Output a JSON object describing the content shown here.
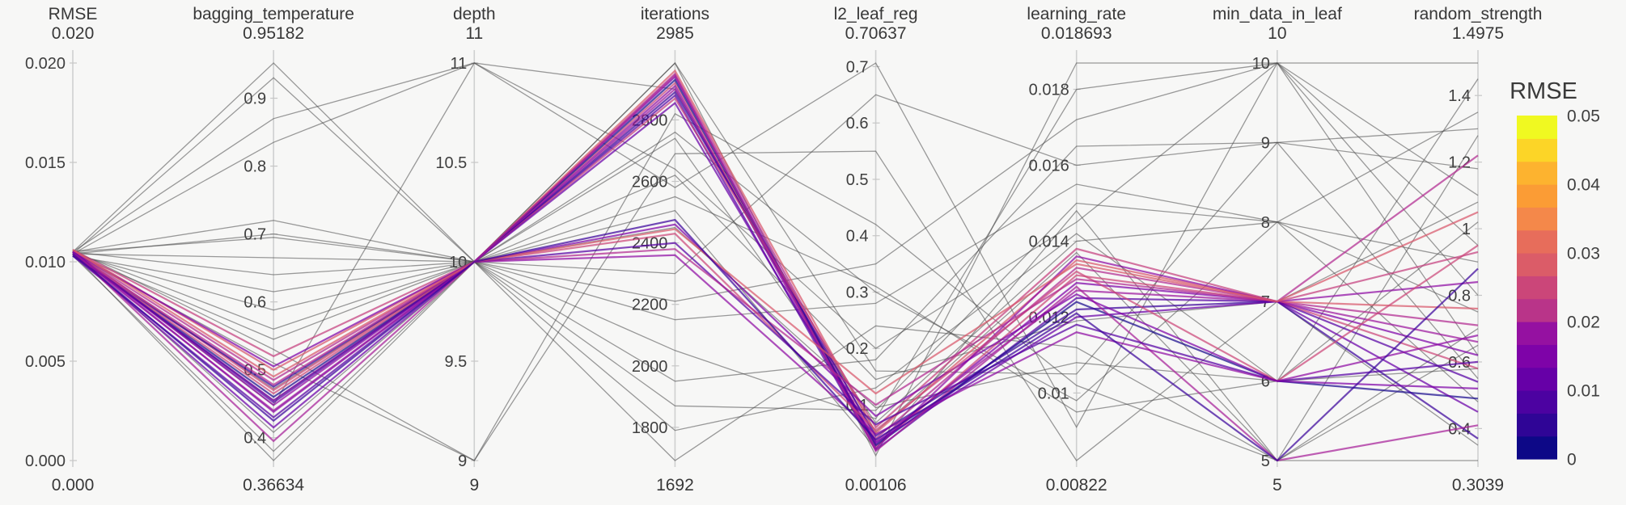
{
  "chart_data": {
    "type": "parallel_coordinates",
    "title": "",
    "axes": [
      {
        "name": "RMSE",
        "max_label": "0.020",
        "min_label": "0.000",
        "min": 0,
        "max": 0.02,
        "ticks": [
          [
            0.02,
            "0.020"
          ],
          [
            0.015,
            "0.015"
          ],
          [
            0.01,
            "0.010"
          ],
          [
            0.005,
            "0.005"
          ],
          [
            0,
            "0.000"
          ]
        ]
      },
      {
        "name": "bagging_temperature",
        "max_label": "0.95182",
        "min_label": "0.36634",
        "min": 0.36634,
        "max": 0.95182,
        "ticks": [
          [
            0.9,
            "0.9"
          ],
          [
            0.8,
            "0.8"
          ],
          [
            0.7,
            "0.7"
          ],
          [
            0.6,
            "0.6"
          ],
          [
            0.5,
            "0.5"
          ],
          [
            0.4,
            "0.4"
          ]
        ]
      },
      {
        "name": "depth",
        "max_label": "11",
        "min_label": "9",
        "min": 9,
        "max": 11,
        "ticks": [
          [
            11,
            "11"
          ],
          [
            10.5,
            "10.5"
          ],
          [
            10,
            "10"
          ],
          [
            9.5,
            "9.5"
          ],
          [
            9,
            "9"
          ]
        ]
      },
      {
        "name": "iterations",
        "max_label": "2985",
        "min_label": "1692",
        "min": 1692,
        "max": 2985,
        "ticks": [
          [
            2800,
            "2800"
          ],
          [
            2600,
            "2600"
          ],
          [
            2400,
            "2400"
          ],
          [
            2200,
            "2200"
          ],
          [
            2000,
            "2000"
          ],
          [
            1800,
            "1800"
          ]
        ]
      },
      {
        "name": "l2_leaf_reg",
        "max_label": "0.70637",
        "min_label": "0.00106",
        "min": 0.00106,
        "max": 0.70637,
        "ticks": [
          [
            0.7,
            "0.7"
          ],
          [
            0.6,
            "0.6"
          ],
          [
            0.5,
            "0.5"
          ],
          [
            0.4,
            "0.4"
          ],
          [
            0.3,
            "0.3"
          ],
          [
            0.2,
            "0.2"
          ],
          [
            0.1,
            "0.1"
          ]
        ]
      },
      {
        "name": "learning_rate",
        "max_label": "0.018693",
        "min_label": "0.00822",
        "min": 0.00822,
        "max": 0.018693,
        "ticks": [
          [
            0.018,
            "0.018"
          ],
          [
            0.016,
            "0.016"
          ],
          [
            0.014,
            "0.014"
          ],
          [
            0.012,
            "0.012"
          ],
          [
            0.01,
            "0.01"
          ]
        ]
      },
      {
        "name": "min_data_in_leaf",
        "max_label": "10",
        "min_label": "5",
        "min": 5,
        "max": 10,
        "ticks": [
          [
            10,
            "10"
          ],
          [
            9,
            "9"
          ],
          [
            8,
            "8"
          ],
          [
            7,
            "7"
          ],
          [
            6,
            "6"
          ],
          [
            5,
            "5"
          ]
        ]
      },
      {
        "name": "random_strength",
        "max_label": "1.4975",
        "min_label": "0.3039",
        "min": 0.3039,
        "max": 1.4975,
        "ticks": [
          [
            1.4,
            "1.4"
          ],
          [
            1.2,
            "1.2"
          ],
          [
            1,
            "1"
          ],
          [
            0.8,
            "0.8"
          ],
          [
            0.6,
            "0.6"
          ],
          [
            0.4,
            "0.4"
          ]
        ]
      }
    ],
    "lines": [
      {
        "v": [
          0.0104,
          0.455,
          10,
          2940,
          0.03,
          0.0129,
          7,
          0.62
        ],
        "c": "#7e03a8"
      },
      {
        "v": [
          0.0105,
          0.47,
          10,
          2920,
          0.025,
          0.0131,
          7,
          0.58
        ],
        "c": "#cc4778"
      },
      {
        "v": [
          0.0104,
          0.44,
          10,
          2900,
          0.035,
          0.0127,
          7,
          0.66
        ],
        "c": "#9c179e"
      },
      {
        "v": [
          0.0105,
          0.485,
          10,
          2950,
          0.04,
          0.0133,
          7,
          0.71
        ],
        "c": "#b12a90"
      },
      {
        "v": [
          0.0103,
          0.43,
          10,
          2880,
          0.02,
          0.0125,
          7,
          0.54
        ],
        "c": "#5601a4"
      },
      {
        "v": [
          0.0106,
          0.5,
          10,
          2960,
          0.05,
          0.0135,
          7,
          0.76
        ],
        "c": "#d8576b"
      },
      {
        "v": [
          0.0104,
          0.46,
          10,
          2930,
          0.028,
          0.0124,
          6,
          0.49
        ],
        "c": "#1b0c8e"
      },
      {
        "v": [
          0.0105,
          0.448,
          10,
          2910,
          0.022,
          0.0136,
          7,
          0.84
        ],
        "c": "#8f0da4"
      },
      {
        "v": [
          0.0103,
          0.475,
          10,
          2890,
          0.045,
          0.0122,
          7,
          0.37
        ],
        "c": "#3b049b"
      },
      {
        "v": [
          0.0106,
          0.52,
          10,
          2870,
          0.06,
          0.0138,
          7,
          0.93
        ],
        "c": "#c5407e"
      },
      {
        "v": [
          0.0104,
          0.415,
          10,
          2855,
          0.033,
          0.012,
          7,
          0.45
        ],
        "c": "#6a00a8"
      },
      {
        "v": [
          0.0105,
          0.395,
          10,
          2945,
          0.018,
          0.0128,
          5,
          0.41
        ],
        "c": "#a62098"
      },
      {
        "v": [
          0.0105,
          0.505,
          10,
          2460,
          0.08,
          0.0126,
          6,
          0.52
        ],
        "c": "#7e03a8"
      },
      {
        "v": [
          0.0104,
          0.465,
          10,
          2430,
          0.055,
          0.0132,
          6,
          0.95
        ],
        "c": "#cc4778"
      },
      {
        "v": [
          0.0105,
          0.452,
          10,
          2400,
          0.065,
          0.0118,
          6,
          0.6
        ],
        "c": "#5601a4"
      },
      {
        "v": [
          0.0104,
          0.478,
          10,
          2380,
          0.1,
          0.013,
          7,
          1.22
        ],
        "c": "#b12a90"
      },
      {
        "v": [
          0.0105,
          0.438,
          10,
          2360,
          0.048,
          0.0116,
          6,
          0.68
        ],
        "c": "#8f0da4"
      },
      {
        "v": [
          0.0106,
          0.49,
          10,
          2445,
          0.12,
          0.0134,
          7,
          1.05
        ],
        "c": "#d8576b"
      },
      {
        "v": [
          0.0104,
          0.425,
          10,
          2475,
          0.038,
          0.0121,
          5,
          0.88
        ],
        "c": "#3b049b"
      },
      {
        "v": [
          0.0105,
          0.95182,
          10,
          2985,
          0.16,
          0.0105,
          9,
          1.3
        ],
        "c": "#4a4a4a"
      },
      {
        "v": [
          0.0104,
          0.93,
          10,
          2760,
          0.3,
          0.0098,
          8,
          0.75
        ],
        "c": "#4a4a4a"
      },
      {
        "v": [
          0.0105,
          0.87,
          11,
          2640,
          0.2,
          0.0145,
          10,
          1.4975
        ],
        "c": "#4a4a4a"
      },
      {
        "v": [
          0.0104,
          0.835,
          11,
          2580,
          0.70637,
          0.0091,
          10,
          0.95
        ],
        "c": "#4a4a4a"
      },
      {
        "v": [
          0.0105,
          0.72,
          10,
          2985,
          0.01,
          0.018693,
          10,
          1.1
        ],
        "c": "#4a4a4a"
      },
      {
        "v": [
          0.0104,
          0.7,
          10,
          2300,
          0.65,
          0.016,
          9,
          0.55
        ],
        "c": "#4a4a4a"
      },
      {
        "v": [
          0.0105,
          0.695,
          10,
          2210,
          0.35,
          0.0172,
          10,
          0.8
        ],
        "c": "#4a4a4a"
      },
      {
        "v": [
          0.0104,
          0.665,
          10,
          2150,
          0.28,
          0.0155,
          8,
          1.35
        ],
        "c": "#4a4a4a"
      },
      {
        "v": [
          0.0105,
          0.64,
          10,
          2050,
          0.075,
          0.018,
          10,
          0.62
        ],
        "c": "#4a4a4a"
      },
      {
        "v": [
          0.0103,
          0.615,
          10,
          1950,
          0.18,
          0.0165,
          9,
          1.18
        ],
        "c": "#4a4a4a"
      },
      {
        "v": [
          0.0104,
          0.588,
          10,
          1870,
          0.09,
          0.015,
          8,
          0.48
        ],
        "c": "#4a4a4a"
      },
      {
        "v": [
          0.0105,
          0.56,
          10,
          1790,
          0.13,
          0.0142,
          6,
          1.02
        ],
        "c": "#4a4a4a"
      },
      {
        "v": [
          0.0104,
          0.545,
          10,
          1692,
          0.24,
          0.0112,
          5,
          0.7
        ],
        "c": "#4a4a4a"
      },
      {
        "v": [
          0.0106,
          0.53,
          9,
          2820,
          0.42,
          0.0102,
          5,
          1.28
        ],
        "c": "#4a4a4a"
      },
      {
        "v": [
          0.0104,
          0.51,
          9,
          2690,
          0.55,
          0.00822,
          7,
          0.35
        ],
        "c": "#4a4a4a"
      },
      {
        "v": [
          0.0105,
          0.472,
          10,
          2550,
          0.31,
          0.0095,
          6,
          1.45
        ],
        "c": "#4a4a4a"
      },
      {
        "v": [
          0.0104,
          0.455,
          10,
          2505,
          0.022,
          0.0148,
          5,
          0.3039
        ],
        "c": "#4a4a4a"
      },
      {
        "v": [
          0.0105,
          0.408,
          10,
          2740,
          0.068,
          0.014,
          8,
          0.9
        ],
        "c": "#4a4a4a"
      },
      {
        "v": [
          0.0103,
          0.38,
          10,
          2620,
          0.145,
          0.0119,
          7,
          1.08
        ],
        "c": "#4a4a4a"
      },
      {
        "v": [
          0.0104,
          0.36634,
          10,
          2450,
          0.095,
          0.0108,
          6,
          0.58
        ],
        "c": "#4a4a4a"
      },
      {
        "v": [
          0.0105,
          0.448,
          11,
          2900,
          0.052,
          0.0137,
          5,
          0.65
        ],
        "c": "#4a4a4a"
      }
    ],
    "colorbar": {
      "title": "RMSE",
      "min": 0,
      "max": 0.05,
      "ticks": [
        [
          0.05,
          "0.05"
        ],
        [
          0.04,
          "0.04"
        ],
        [
          0.03,
          "0.03"
        ],
        [
          0.02,
          "0.02"
        ],
        [
          0.01,
          "0.01"
        ],
        [
          0,
          "0"
        ]
      ],
      "colors_bottom_to_top": [
        "#0d0887",
        "#2f0596",
        "#4c02a1",
        "#6600a7",
        "#7e03a8",
        "#9511a1",
        "#b93489",
        "#cb4679",
        "#db5c68",
        "#e76d5b",
        "#f4884a",
        "#fb9c35",
        "#fdb32f",
        "#fcd527",
        "#f0f921"
      ]
    },
    "layout_hints": {
      "background": "#f7f7f6",
      "axis_line_color": "#cfd0d0",
      "legend_position": "right-colorbar",
      "grid": false
    }
  }
}
